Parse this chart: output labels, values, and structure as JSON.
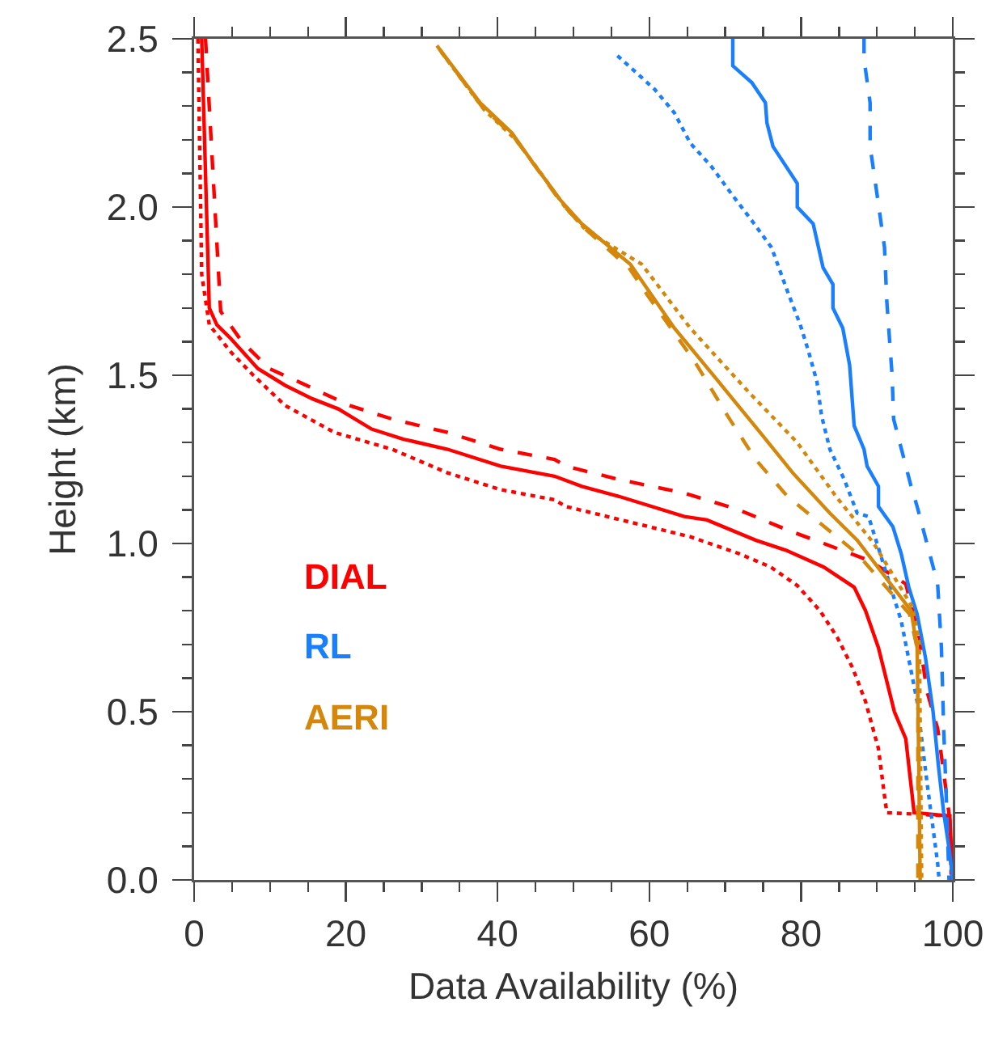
{
  "chart_data": {
    "type": "line",
    "xlabel": "Data Availability (%)",
    "ylabel": "Height (km)",
    "xlim": [
      0,
      100
    ],
    "ylim": [
      0,
      2.5
    ],
    "xticks": [
      0,
      {
        "value": 5,
        "label": null
      },
      {
        "value": 10,
        "label": null
      },
      {
        "value": 15,
        "label": null
      },
      20,
      {
        "value": 25,
        "label": null
      },
      {
        "value": 30,
        "label": null
      },
      {
        "value": 35,
        "label": null
      },
      40,
      {
        "value": 45,
        "label": null
      },
      {
        "value": 50,
        "label": null
      },
      {
        "value": 55,
        "label": null
      },
      60,
      {
        "value": 65,
        "label": null
      },
      {
        "value": 70,
        "label": null
      },
      {
        "value": 75,
        "label": null
      },
      80,
      {
        "value": 85,
        "label": null
      },
      {
        "value": 90,
        "label": null
      },
      {
        "value": 95,
        "label": null
      },
      100
    ],
    "yticks": [
      {
        "value": 0,
        "label": "0.0"
      },
      {
        "value": 0.1,
        "label": null
      },
      {
        "value": 0.2,
        "label": null
      },
      {
        "value": 0.3,
        "label": null
      },
      {
        "value": 0.4,
        "label": null
      },
      0.5,
      {
        "value": 0.6,
        "label": null
      },
      {
        "value": 0.7,
        "label": null
      },
      {
        "value": 0.8,
        "label": null
      },
      {
        "value": 0.9,
        "label": null
      },
      {
        "value": 1,
        "label": "1.0"
      },
      {
        "value": 1.1,
        "label": null
      },
      {
        "value": 1.2,
        "label": null
      },
      {
        "value": 1.3,
        "label": null
      },
      {
        "value": 1.4,
        "label": null
      },
      1.5,
      {
        "value": 1.6,
        "label": null
      },
      {
        "value": 1.7,
        "label": null
      },
      {
        "value": 1.8,
        "label": null
      },
      {
        "value": 1.9,
        "label": null
      },
      {
        "value": 2,
        "label": "2.0"
      },
      {
        "value": 2.1,
        "label": null
      },
      {
        "value": 2.2,
        "label": null
      },
      {
        "value": 2.3,
        "label": null
      },
      {
        "value": 2.4,
        "label": null
      },
      2.5
    ],
    "grid": false,
    "legend": false,
    "marker": "none",
    "series": [
      {
        "name": "DIAL",
        "color": "#ff0000",
        "line_style": "solid",
        "x": [
          1,
          2,
          3,
          4.8,
          8.4,
          12,
          15.6,
          19,
          23.4,
          27.6,
          33.4,
          40.4,
          47.5,
          51.1,
          56,
          64.6,
          67.6,
          74,
          78,
          83,
          87,
          88.5,
          90.2,
          92.3,
          93.8,
          94.9,
          99.6,
          100
        ],
        "values": [
          2.5,
          1.7,
          1.65,
          1.61,
          1.52,
          1.47,
          1.43,
          1.4,
          1.34,
          1.31,
          1.28,
          1.23,
          1.2,
          1.17,
          1.14,
          1.08,
          1.07,
          1.01,
          0.98,
          0.93,
          0.87,
          0.8,
          0.69,
          0.5,
          0.42,
          0.2,
          0.19,
          0
        ]
      },
      {
        "color": "#ff0000",
        "line_style": "dashed",
        "x": [
          1.5,
          3.5,
          6.3,
          9.9,
          14.8,
          20.5,
          26.1,
          33.4,
          40.4,
          47.5,
          49,
          56,
          64.6,
          71.8,
          78.2,
          83,
          88.9,
          93.8,
          95.5,
          96.6,
          98,
          98.8,
          99.6,
          99.9
        ],
        "values": [
          2.5,
          1.69,
          1.6,
          1.52,
          1.47,
          1.41,
          1.37,
          1.33,
          1.28,
          1.25,
          1.23,
          1.19,
          1.15,
          1.1,
          1.04,
          1,
          0.95,
          0.88,
          0.73,
          0.56,
          0.45,
          0.32,
          0.18,
          0
        ]
      },
      {
        "color": "#ff0000",
        "line_style": "dotted",
        "x": [
          0.5,
          1,
          2,
          4.8,
          7.8,
          12,
          18.5,
          26.1,
          33.4,
          40.4,
          47.5,
          49,
          65.4,
          71.8,
          76,
          79.5,
          82.5,
          84.8,
          86.8,
          88.5,
          90.2,
          91,
          91.3,
          99.6,
          99.8
        ],
        "values": [
          2.5,
          1.8,
          1.65,
          1.57,
          1.5,
          1.41,
          1.33,
          1.28,
          1.21,
          1.16,
          1.13,
          1.11,
          1.02,
          0.97,
          0.93,
          0.875,
          0.8,
          0.72,
          0.63,
          0.53,
          0.39,
          0.25,
          0.2,
          0.19,
          0
        ]
      },
      {
        "name": "RL",
        "color": "#1a7fff",
        "line_style": "solid",
        "x": [
          71,
          71,
          73.5,
          75.3,
          75.5,
          76.3,
          79.5,
          79.5,
          81.6,
          82.9,
          84.2,
          84.2,
          85.5,
          86.4,
          87,
          88.3,
          88.7,
          90.2,
          90.2,
          92.1,
          93.2,
          94.2,
          95.3,
          96.4,
          97.4,
          98.1,
          98.8,
          99.6,
          100
        ],
        "values": [
          2.5,
          2.42,
          2.37,
          2.31,
          2.25,
          2.18,
          2.07,
          2,
          1.95,
          1.82,
          1.77,
          1.7,
          1.64,
          1.53,
          1.35,
          1.28,
          1.23,
          1.17,
          1.11,
          1.05,
          0.97,
          0.87,
          0.79,
          0.66,
          0.5,
          0.34,
          0.2,
          0.08,
          0
        ]
      },
      {
        "color": "#1a7fff",
        "line_style": "dashed",
        "x": [
          88.3,
          88.3,
          89.1,
          89.1,
          90,
          91,
          91.3,
          92,
          92.2,
          94.5,
          95.3,
          98,
          98.5,
          98.8,
          99.2,
          99.5
        ],
        "values": [
          2.5,
          2.44,
          2.31,
          2.18,
          2.04,
          1.88,
          1.72,
          1.5,
          1.37,
          1.17,
          1.11,
          0.88,
          0.69,
          0.45,
          0.21,
          0
        ]
      },
      {
        "color": "#1a7fff",
        "line_style": "dotted",
        "x": [
          55.8,
          60.7,
          63.3,
          65.4,
          68.2,
          70.8,
          73.5,
          76.1,
          78.2,
          79.9,
          81,
          82.1,
          82.7,
          83.8,
          85.7,
          87.4,
          88.9,
          93.2,
          95.3,
          96.6,
          98,
          98.2
        ],
        "values": [
          2.45,
          2.35,
          2.28,
          2.19,
          2.12,
          2.04,
          1.96,
          1.88,
          1.75,
          1.65,
          1.57,
          1.48,
          1.38,
          1.28,
          1.19,
          1.09,
          1.08,
          0.77,
          0.53,
          0.29,
          0.05,
          0
        ]
      },
      {
        "name": "AERI",
        "color": "#d4870a",
        "line_style": "solid",
        "x": [
          32,
          37.7,
          41.9,
          44.7,
          48.3,
          51.1,
          57.5,
          63.3,
          68.8,
          74.6,
          78.9,
          83.8,
          87.4,
          94.5,
          95.3,
          95.5,
          95.7
        ],
        "values": [
          2.48,
          2.31,
          2.22,
          2.13,
          2.02,
          1.95,
          1.83,
          1.64,
          1.49,
          1.33,
          1.21,
          1.09,
          1.01,
          0.8,
          0.69,
          0.37,
          0
        ]
      },
      {
        "color": "#d4870a",
        "line_style": "dashed",
        "x": [
          32.3,
          37.9,
          42.1,
          45,
          48.5,
          51.3,
          57.3,
          59.7,
          66,
          70.3,
          74,
          78.2,
          87.4,
          94.3,
          95.4,
          95.4
        ],
        "values": [
          2.47,
          2.3,
          2.21,
          2.12,
          2.01,
          1.94,
          1.82,
          1.74,
          1.54,
          1.38,
          1.25,
          1.14,
          0.97,
          0.79,
          0.68,
          0
        ]
      },
      {
        "color": "#d4870a",
        "line_style": "dotted",
        "x": [
          32.6,
          38.2,
          42.4,
          45.4,
          48.9,
          51.7,
          59,
          65.4,
          73.1,
          79.5,
          84.6,
          89.6,
          94.7,
          95.6,
          95.9
        ],
        "values": [
          2.46,
          2.29,
          2.2,
          2.11,
          2.0,
          1.93,
          1.83,
          1.64,
          1.45,
          1.3,
          1.14,
          1,
          0.81,
          0.7,
          0
        ]
      }
    ]
  }
}
